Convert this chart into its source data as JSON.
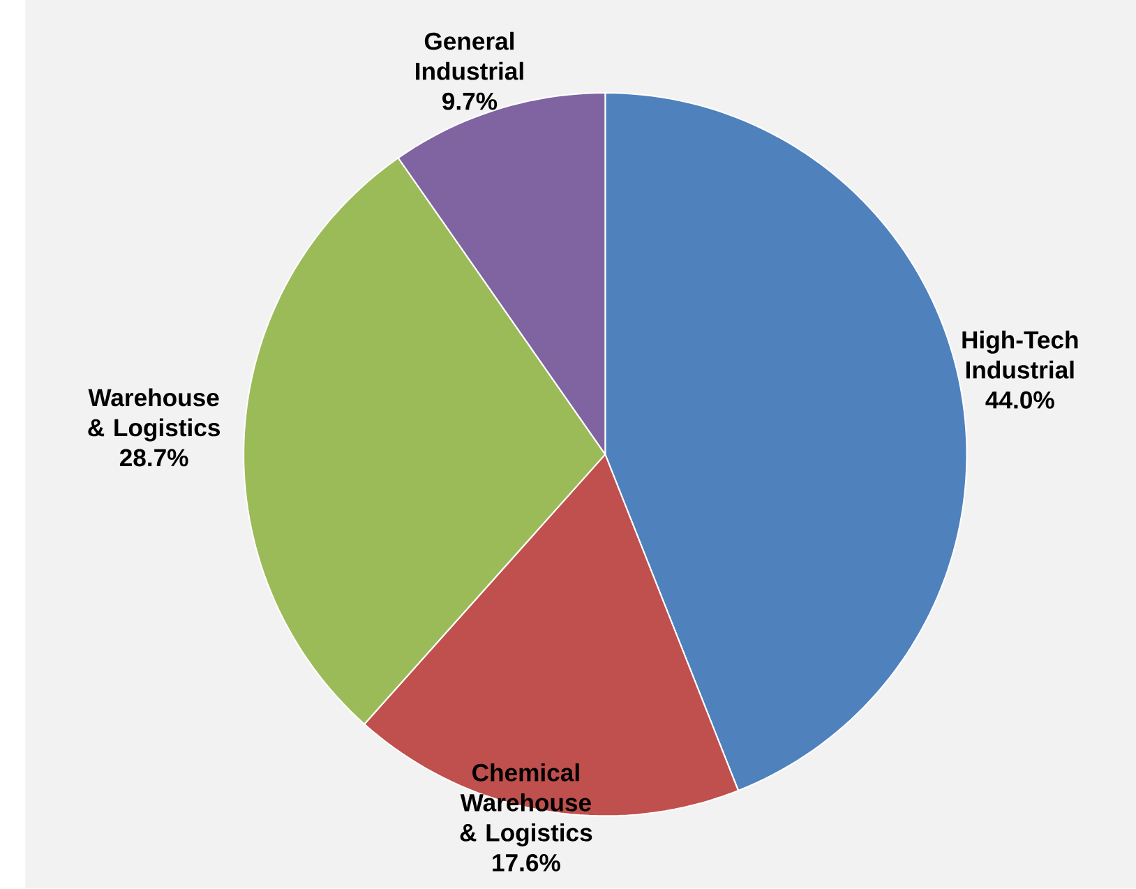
{
  "chart_data": {
    "type": "pie",
    "categories": [
      "High-Tech Industrial",
      "Chemical Warehouse & Logistics",
      "Warehouse & Logistics",
      "General Industrial"
    ],
    "values": [
      44.0,
      17.6,
      28.7,
      9.7
    ],
    "value_labels": [
      "44.0%",
      "17.6%",
      "28.7%",
      "9.7%"
    ],
    "colors": [
      "#4f81bd",
      "#c0504d",
      "#9bbb59",
      "#8064a2"
    ]
  }
}
